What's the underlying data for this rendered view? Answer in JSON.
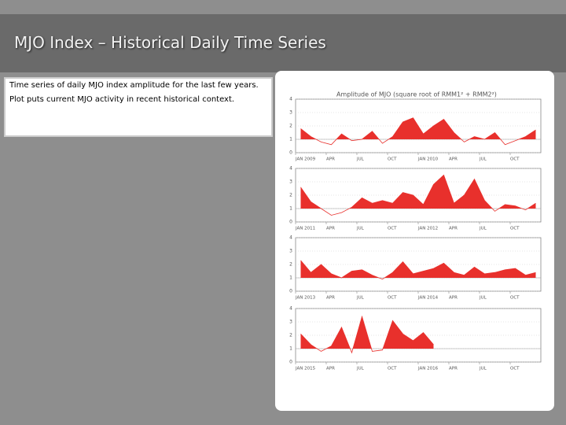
{
  "header": {
    "title": "MJO Index – Historical Daily Time Series"
  },
  "text_box": {
    "paragraphs": [
      "Time series of daily MJO index amplitude for the last few years.",
      "Plot puts current MJO activity in recent historical context."
    ]
  },
  "chart_data": {
    "type": "area",
    "title": "Amplitude of MJO (square root of RMM1² + RMM2²)",
    "color": "#e8302c",
    "fill_above": 1,
    "ylim": [
      0,
      4
    ],
    "yticks": [
      0,
      1,
      2,
      3,
      4
    ],
    "panels": [
      {
        "xticks": [
          "JAN 2009",
          "APR",
          "JUL",
          "OCT",
          "JAN 2010",
          "APR",
          "JUL",
          "OCT"
        ],
        "values": [
          1.8,
          1.2,
          0.8,
          0.6,
          1.4,
          0.9,
          1.0,
          1.6,
          0.7,
          1.2,
          2.3,
          2.6,
          1.4,
          2.0,
          2.5,
          1.5,
          0.8,
          1.2,
          1.0,
          1.5,
          0.6,
          0.9,
          1.2,
          1.7
        ]
      },
      {
        "xticks": [
          "JAN 2011",
          "APR",
          "JUL",
          "OCT",
          "JAN 2012",
          "APR",
          "JUL",
          "OCT"
        ],
        "values": [
          2.6,
          1.5,
          1.0,
          0.5,
          0.7,
          1.1,
          1.8,
          1.4,
          1.6,
          1.4,
          2.2,
          2.0,
          1.3,
          2.8,
          3.5,
          1.4,
          2.0,
          3.2,
          1.6,
          0.8,
          1.3,
          1.2,
          0.9,
          1.4
        ]
      },
      {
        "xticks": [
          "JAN 2013",
          "APR",
          "JUL",
          "OCT",
          "JAN 2014",
          "APR",
          "JUL",
          "OCT"
        ],
        "values": [
          2.3,
          1.4,
          2.0,
          1.3,
          1.0,
          1.5,
          1.6,
          1.2,
          0.9,
          1.4,
          2.2,
          1.3,
          1.5,
          1.7,
          2.1,
          1.4,
          1.2,
          1.8,
          1.3,
          1.4,
          1.6,
          1.7,
          1.2,
          1.4
        ]
      },
      {
        "xticks": [
          "JAN 2015",
          "APR",
          "JUL",
          "OCT",
          "JAN 2016",
          "APR",
          "JUL",
          "OCT"
        ],
        "values": [
          2.1,
          1.3,
          0.8,
          1.2,
          2.6,
          0.7,
          3.4,
          0.8,
          0.9,
          3.1,
          2.1,
          1.6,
          2.2,
          1.3,
          null,
          null,
          null,
          null,
          null,
          null,
          null,
          null,
          null,
          null
        ]
      }
    ]
  }
}
